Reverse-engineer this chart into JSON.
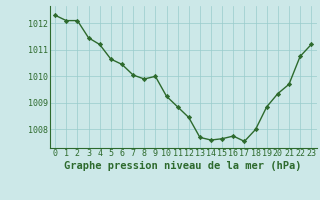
{
  "x": [
    0,
    1,
    2,
    3,
    4,
    5,
    6,
    7,
    8,
    9,
    10,
    11,
    12,
    13,
    14,
    15,
    16,
    17,
    18,
    19,
    20,
    21,
    22,
    23
  ],
  "y": [
    1012.3,
    1012.1,
    1012.1,
    1011.45,
    1011.2,
    1010.65,
    1010.45,
    1010.05,
    1009.9,
    1010.0,
    1009.25,
    1008.85,
    1008.45,
    1007.7,
    1007.6,
    1007.65,
    1007.75,
    1007.55,
    1008.0,
    1008.85,
    1009.35,
    1009.7,
    1010.75,
    1011.2
  ],
  "line_color": "#2d6a2d",
  "marker": "D",
  "marker_size": 2.2,
  "bg_color": "#cce8e8",
  "grid_color": "#99cccc",
  "tick_label_color": "#2d6a2d",
  "xlabel": "Graphe pression niveau de la mer (hPa)",
  "xlabel_color": "#2d6a2d",
  "ylim": [
    1007.3,
    1012.65
  ],
  "yticks": [
    1008,
    1009,
    1010,
    1011,
    1012
  ],
  "xticks": [
    0,
    1,
    2,
    3,
    4,
    5,
    6,
    7,
    8,
    9,
    10,
    11,
    12,
    13,
    14,
    15,
    16,
    17,
    18,
    19,
    20,
    21,
    22,
    23
  ],
  "xlabel_fontsize": 7.5,
  "tick_fontsize": 6.0,
  "line_width": 1.0
}
